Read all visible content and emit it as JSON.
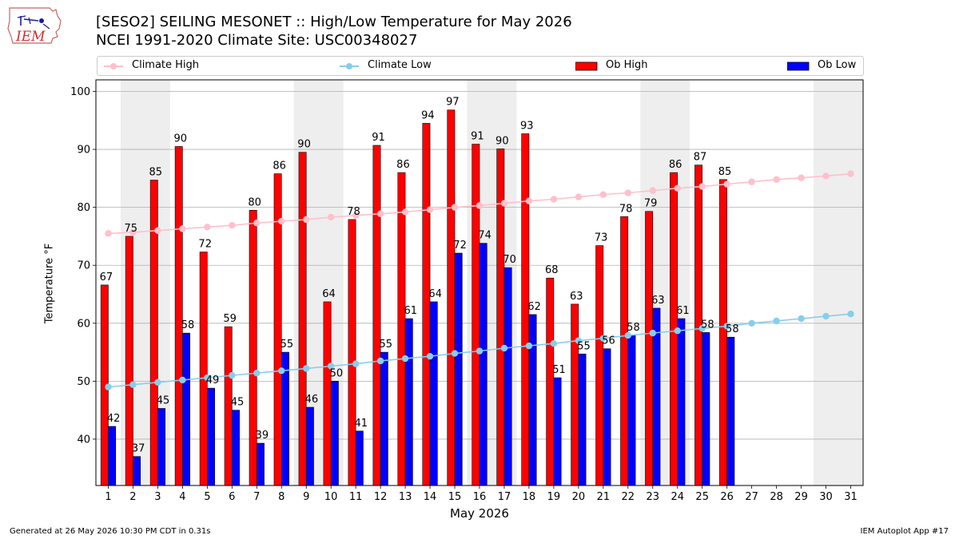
{
  "title_line1": "[SESO2] SEILING MESONET :: High/Low Temperature for May 2026",
  "title_line2": "NCEI 1991-2020 Climate Site: USC00348027",
  "footer_left": "Generated at 26 May 2026 10:30 PM CDT in 0.31s",
  "footer_right": "IEM Autoplot App #17",
  "logo_text": "IEM",
  "legend": {
    "climate_high": "Climate High",
    "climate_low": "Climate Low",
    "ob_high": "Ob High",
    "ob_low": "Ob Low"
  },
  "colors": {
    "ob_high": "#ff0000",
    "ob_low": "#0000ff",
    "climate_high": "#ffc0cb",
    "climate_low": "#87ceeb",
    "weekend_shade": "#eeeeee"
  },
  "chart_data": {
    "type": "bar",
    "xlabel": "May 2026",
    "ylabel": "Temperature °F",
    "ylim": [
      32,
      102
    ],
    "yticks": [
      40,
      50,
      60,
      70,
      80,
      90,
      100
    ],
    "grid": true,
    "legend_position": "top",
    "days": [
      1,
      2,
      3,
      4,
      5,
      6,
      7,
      8,
      9,
      10,
      11,
      12,
      13,
      14,
      15,
      16,
      17,
      18,
      19,
      20,
      21,
      22,
      23,
      24,
      25,
      26,
      27,
      28,
      29,
      30,
      31
    ],
    "shaded_days": [
      [
        2,
        3
      ],
      [
        9,
        10
      ],
      [
        16,
        17
      ],
      [
        23,
        24
      ],
      [
        30,
        31
      ]
    ],
    "series": [
      {
        "name": "Ob High",
        "kind": "bar",
        "values": [
          66.6,
          75.0,
          84.7,
          90.5,
          72.3,
          59.4,
          79.5,
          85.8,
          89.5,
          63.7,
          77.9,
          90.7,
          86.0,
          94.5,
          96.8,
          90.9,
          90.1,
          92.7,
          67.8,
          63.3,
          73.4,
          78.4,
          79.3,
          86.0,
          87.3,
          84.8
        ]
      },
      {
        "name": "Ob Low",
        "kind": "bar",
        "values": [
          42.2,
          37.0,
          45.3,
          58.3,
          48.8,
          45.0,
          39.3,
          55.0,
          45.5,
          50.0,
          41.4,
          55.0,
          60.8,
          63.7,
          72.1,
          73.8,
          69.6,
          61.5,
          50.6,
          54.7,
          55.6,
          57.9,
          62.6,
          60.8,
          58.4,
          57.6
        ]
      },
      {
        "name": "Climate High",
        "kind": "line",
        "values": [
          75.5,
          75.7,
          76.0,
          76.3,
          76.6,
          76.9,
          77.3,
          77.6,
          77.9,
          78.3,
          78.6,
          78.9,
          79.2,
          79.6,
          80.0,
          80.3,
          80.7,
          81.1,
          81.4,
          81.8,
          82.2,
          82.5,
          82.9,
          83.3,
          83.6,
          84.0,
          84.4,
          84.8,
          85.1,
          85.4,
          85.8
        ]
      },
      {
        "name": "Climate Low",
        "kind": "line",
        "values": [
          49.0,
          49.4,
          49.8,
          50.2,
          50.6,
          51.0,
          51.4,
          51.8,
          52.2,
          52.6,
          53.0,
          53.5,
          53.9,
          54.3,
          54.8,
          55.2,
          55.7,
          56.1,
          56.5,
          57.0,
          57.4,
          57.9,
          58.3,
          58.7,
          59.1,
          59.5,
          60.0,
          60.4,
          60.8,
          61.2,
          61.6
        ]
      }
    ],
    "high_labels": [
      "67",
      "75",
      "85",
      "90",
      "72",
      "59",
      "80",
      "86",
      "90",
      "64",
      "78",
      "91",
      "86",
      "94",
      "97",
      "91",
      "90",
      "93",
      "68",
      "63",
      "73",
      "78",
      "79",
      "86",
      "87",
      "85"
    ],
    "low_labels": [
      "42",
      "37",
      "45",
      "58",
      "49",
      "45",
      "39",
      "55",
      "46",
      "50",
      "41",
      "55",
      "61",
      "64",
      "72",
      "74",
      "70",
      "62",
      "51",
      "55",
      "56",
      "58",
      "63",
      "61",
      "58",
      "58"
    ]
  }
}
